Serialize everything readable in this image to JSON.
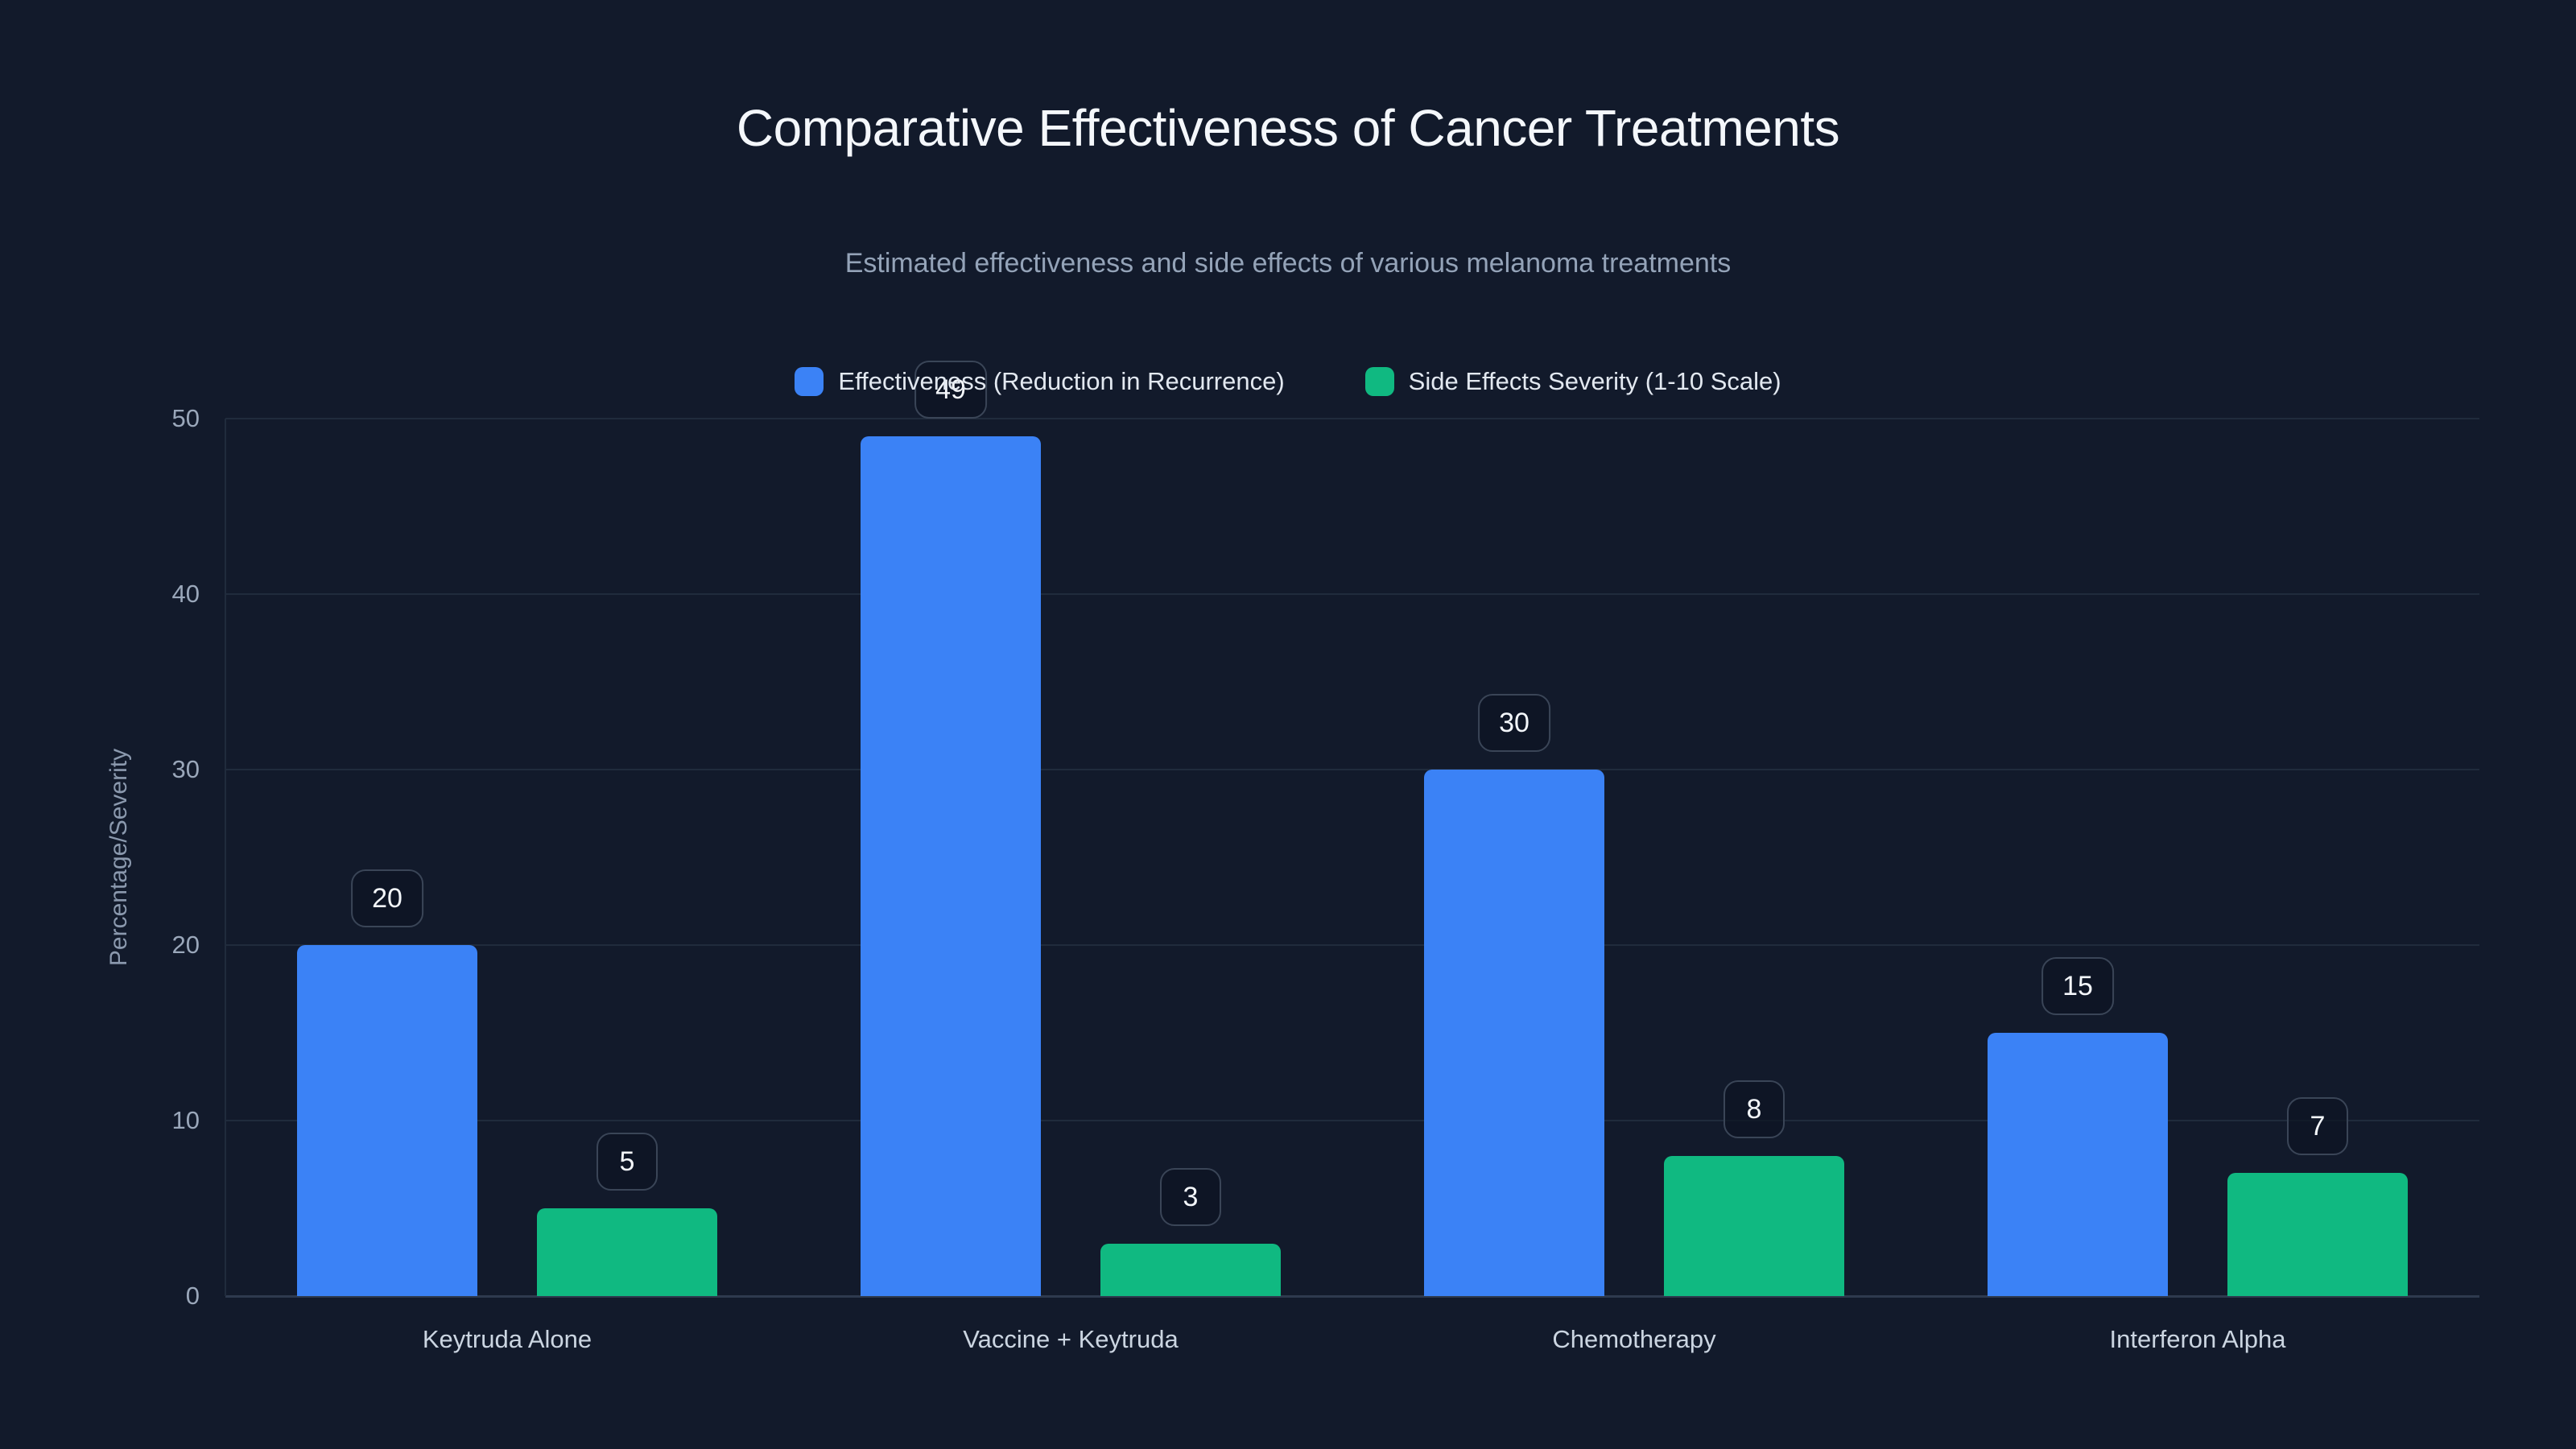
{
  "page": {
    "title": "Comparative Effectiveness of Cancer Treatments",
    "subtitle": "Estimated effectiveness and side effects of various melanoma treatments"
  },
  "chart_data": {
    "type": "bar",
    "title": "Comparative Effectiveness of Cancer Treatments",
    "subtitle": "Estimated effectiveness and side effects of various melanoma treatments",
    "categories": [
      "Keytruda Alone",
      "Vaccine + Keytruda",
      "Chemotherapy",
      "Interferon Alpha"
    ],
    "series": [
      {
        "name": "Effectiveness (Reduction in Recurrence)",
        "color": "#3B82F6",
        "values": [
          20,
          49,
          30,
          15
        ]
      },
      {
        "name": "Side Effects Severity (1-10 Scale)",
        "color": "#10B981",
        "values": [
          5,
          3,
          8,
          7
        ]
      }
    ],
    "xlabel": "",
    "ylabel": "Percentage/Severity",
    "ylim": [
      0,
      50
    ],
    "yticks": [
      0,
      10,
      20,
      30,
      40,
      50
    ],
    "grid": true,
    "legend_position": "top-center",
    "data_labels": true
  },
  "colors": {
    "background": "#121A2B",
    "grid_line": "#202B3C",
    "axis_line": "#2E3A4E",
    "title_text": "#F4F7FB",
    "subtitle_text": "#94A3B8",
    "tick_text": "#9AA7BA",
    "category_text": "#CBD5E1",
    "legend_text": "#E2E8F0",
    "badge_text": "#F3F6FA",
    "badge_border": "#3A4557",
    "effectiveness_bar": "#3B82F6",
    "side_effects_bar": "#10B981"
  }
}
